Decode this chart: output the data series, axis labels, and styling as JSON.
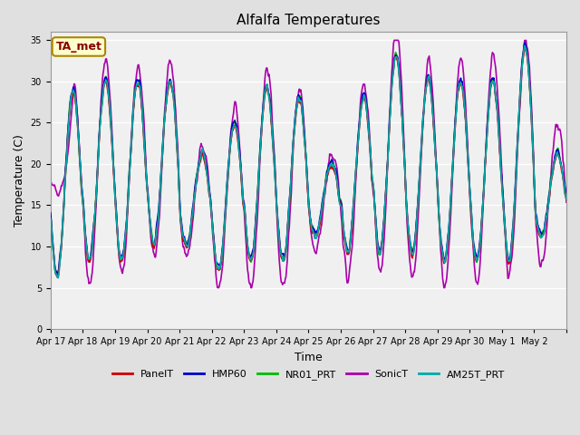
{
  "title": "Alfalfa Temperatures",
  "ylabel": "Temperature (C)",
  "xlabel": "Time",
  "ylim": [
    0,
    36
  ],
  "yticks": [
    0,
    5,
    10,
    15,
    20,
    25,
    30,
    35
  ],
  "annotation_text": "TA_met",
  "annotation_color": "#880000",
  "annotation_bg": "#ffffcc",
  "annotation_border": "#aa8800",
  "series": {
    "PanelT": {
      "color": "#cc0000",
      "lw": 1.2,
      "zorder": 5
    },
    "HMP60": {
      "color": "#0000cc",
      "lw": 1.2,
      "zorder": 4
    },
    "NR01_PRT": {
      "color": "#00bb00",
      "lw": 1.2,
      "zorder": 3
    },
    "SonicT": {
      "color": "#aa00aa",
      "lw": 1.2,
      "zorder": 2
    },
    "AM25T_PRT": {
      "color": "#00aaaa",
      "lw": 1.2,
      "zorder": 6
    }
  },
  "bg_color": "#e0e0e0",
  "plot_bg": "#f0f0f0",
  "grid_color": "#ffffff",
  "title_fontsize": 11,
  "axis_label_fontsize": 9,
  "tick_fontsize": 7,
  "legend_fontsize": 8,
  "x_tick_labels": [
    "Apr 17",
    "Apr 18",
    "Apr 19",
    "Apr 20",
    "Apr 21",
    "Apr 22",
    "Apr 23",
    "Apr 24",
    "Apr 25",
    "Apr 26",
    "Apr 27",
    "Apr 28",
    "Apr 29",
    "Apr 30",
    "May 1",
    "May 2"
  ]
}
